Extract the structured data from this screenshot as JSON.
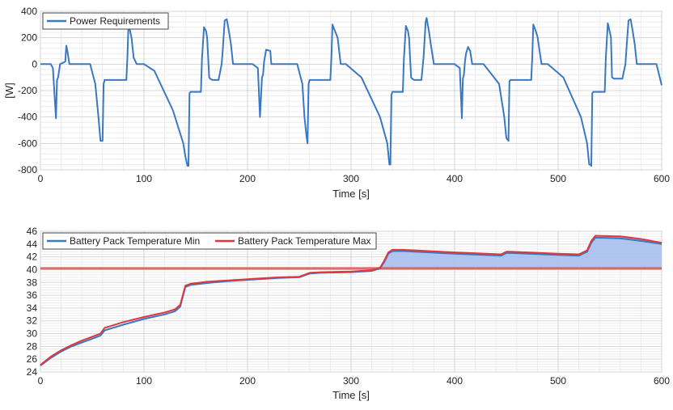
{
  "chart_data": [
    {
      "type": "line",
      "title": "",
      "xlabel": "Time [s]",
      "ylabel": "[W]",
      "xlim": [
        0,
        600
      ],
      "ylim": [
        -800,
        400
      ],
      "xticks": [
        "0",
        "100",
        "200",
        "300",
        "400",
        "500",
        "600"
      ],
      "yticks": [
        "-800",
        "-600",
        "-400",
        "-200",
        "0",
        "200",
        "400"
      ],
      "grid": true,
      "legend_position": "top-left",
      "series": [
        {
          "name": "Power Requirements",
          "color": "#3a78c2",
          "x": [
            0,
            10,
            12,
            15,
            16,
            17,
            19,
            24,
            25,
            26,
            28,
            30,
            48,
            53,
            56,
            58,
            60,
            61,
            62,
            63,
            83,
            84,
            85,
            86,
            88,
            90,
            93,
            100,
            110,
            128,
            138,
            140,
            142,
            143,
            144,
            145,
            155,
            156,
            158,
            160,
            161,
            163,
            164,
            166,
            172,
            175,
            176,
            178,
            180,
            182,
            184,
            186,
            190,
            205,
            210,
            212,
            214,
            215,
            216,
            218,
            222,
            223,
            225,
            226,
            228,
            232,
            248,
            253,
            255,
            257,
            258,
            259,
            260,
            280,
            281,
            282,
            284,
            287,
            290,
            295,
            310,
            328,
            335,
            337,
            338,
            339,
            340,
            350,
            351,
            353,
            355,
            356,
            358,
            359,
            361,
            368,
            370,
            372,
            373,
            375,
            377,
            380,
            385,
            400,
            405,
            407,
            408,
            409,
            410,
            411,
            413,
            415,
            417,
            418,
            419,
            420,
            428,
            443,
            448,
            450,
            452,
            453,
            454,
            474,
            475,
            476,
            478,
            480,
            484,
            490,
            505,
            522,
            528,
            530,
            531,
            532,
            533,
            534,
            545,
            546,
            548,
            550,
            551,
            552,
            554,
            556,
            562,
            565,
            566,
            568,
            570,
            572,
            574,
            576,
            580,
            595,
            600
          ],
          "values": [
            0,
            0,
            -30,
            -410,
            -120,
            -100,
            0,
            20,
            140,
            100,
            0,
            0,
            0,
            -150,
            -400,
            -580,
            -580,
            -150,
            -120,
            -120,
            -120,
            50,
            300,
            270,
            200,
            50,
            0,
            0,
            -50,
            -350,
            -600,
            -700,
            -770,
            -770,
            -220,
            -210,
            -210,
            40,
            280,
            250,
            200,
            -100,
            -110,
            -120,
            -120,
            0,
            100,
            330,
            340,
            250,
            150,
            0,
            0,
            0,
            -30,
            -400,
            -100,
            -80,
            20,
            110,
            100,
            0,
            0,
            0,
            0,
            0,
            0,
            -150,
            -400,
            -550,
            -600,
            -150,
            -120,
            -120,
            50,
            300,
            260,
            200,
            0,
            0,
            -100,
            -400,
            -600,
            -760,
            -760,
            -230,
            -210,
            -210,
            40,
            290,
            250,
            200,
            -100,
            -110,
            -120,
            -120,
            50,
            320,
            350,
            260,
            150,
            0,
            0,
            0,
            -30,
            -410,
            -110,
            -80,
            20,
            80,
            130,
            100,
            0,
            0,
            0,
            0,
            0,
            -150,
            -400,
            -560,
            -580,
            -130,
            -120,
            -120,
            50,
            300,
            260,
            210,
            0,
            0,
            -100,
            -400,
            -600,
            -760,
            -760,
            -770,
            -220,
            -210,
            -210,
            40,
            310,
            240,
            200,
            -100,
            -110,
            -110,
            -110,
            0,
            120,
            330,
            340,
            250,
            150,
            0,
            0,
            0,
            -160
          ]
        }
      ]
    },
    {
      "type": "line",
      "title": "",
      "xlabel": "Time [s]",
      "ylabel": "",
      "xlim": [
        0,
        600
      ],
      "ylim": [
        24,
        46
      ],
      "xticks": [
        "0",
        "100",
        "200",
        "300",
        "400",
        "500",
        "600"
      ],
      "yticks": [
        "24",
        "26",
        "28",
        "30",
        "32",
        "34",
        "36",
        "38",
        "40",
        "42",
        "44",
        "46"
      ],
      "grid": true,
      "legend_position": "top-left",
      "threshold_line": 40.2,
      "threshold_color": "#d9534f",
      "fill_between_color": "#a9bff0",
      "series": [
        {
          "name": "Battery Pack Temperature Min",
          "color": "#3a78c2",
          "x": [
            0,
            10,
            20,
            30,
            40,
            50,
            58,
            62,
            80,
            100,
            120,
            130,
            135,
            140,
            145,
            160,
            180,
            200,
            230,
            250,
            255,
            260,
            270,
            300,
            320,
            328,
            332,
            336,
            340,
            350,
            400,
            445,
            450,
            455,
            500,
            520,
            528,
            532,
            536,
            560,
            580,
            600
          ],
          "values": [
            25.0,
            26.2,
            27.2,
            28.0,
            28.6,
            29.2,
            29.7,
            30.5,
            31.4,
            32.3,
            33.0,
            33.5,
            34.2,
            37.3,
            37.6,
            37.9,
            38.2,
            38.4,
            38.7,
            38.8,
            39.1,
            39.4,
            39.5,
            39.6,
            39.8,
            40.2,
            41.2,
            42.5,
            42.9,
            42.9,
            42.5,
            42.2,
            42.6,
            42.6,
            42.3,
            42.2,
            42.8,
            44.2,
            45.0,
            44.9,
            44.5,
            44.0
          ]
        },
        {
          "name": "Battery Pack Temperature Max",
          "color": "#e0383a",
          "x": [
            0,
            10,
            20,
            30,
            40,
            50,
            58,
            62,
            80,
            100,
            120,
            130,
            135,
            140,
            145,
            160,
            180,
            200,
            230,
            250,
            255,
            260,
            270,
            300,
            320,
            328,
            332,
            336,
            340,
            350,
            400,
            445,
            450,
            455,
            500,
            520,
            528,
            532,
            536,
            560,
            580,
            600
          ],
          "values": [
            25.1,
            26.4,
            27.4,
            28.2,
            28.9,
            29.5,
            30.0,
            30.9,
            31.8,
            32.6,
            33.3,
            33.8,
            34.5,
            37.5,
            37.8,
            38.1,
            38.3,
            38.5,
            38.8,
            38.9,
            39.2,
            39.5,
            39.6,
            39.7,
            39.9,
            40.3,
            41.4,
            42.7,
            43.1,
            43.1,
            42.7,
            42.4,
            42.8,
            42.8,
            42.5,
            42.4,
            43.0,
            44.5,
            45.3,
            45.2,
            44.8,
            44.2
          ]
        }
      ]
    }
  ]
}
